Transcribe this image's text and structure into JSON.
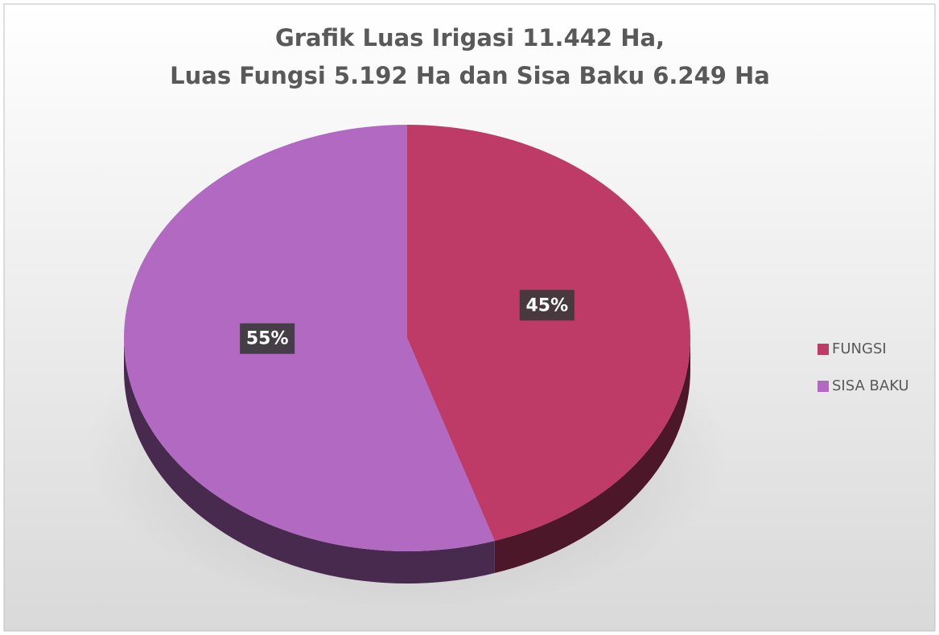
{
  "chart_data": {
    "type": "pie",
    "title": [
      "Grafik Luas Irigasi 11.442 Ha,",
      "Luas Fungsi 5.192 Ha dan Sisa Baku 6.249 Ha"
    ],
    "categories": [
      "FUNGSI",
      "SISA BAKU"
    ],
    "values": [
      45,
      55
    ],
    "value_labels": [
      "45%",
      "55%"
    ],
    "colors": [
      "#be3b67",
      "#b169c2"
    ],
    "legend": "right"
  }
}
